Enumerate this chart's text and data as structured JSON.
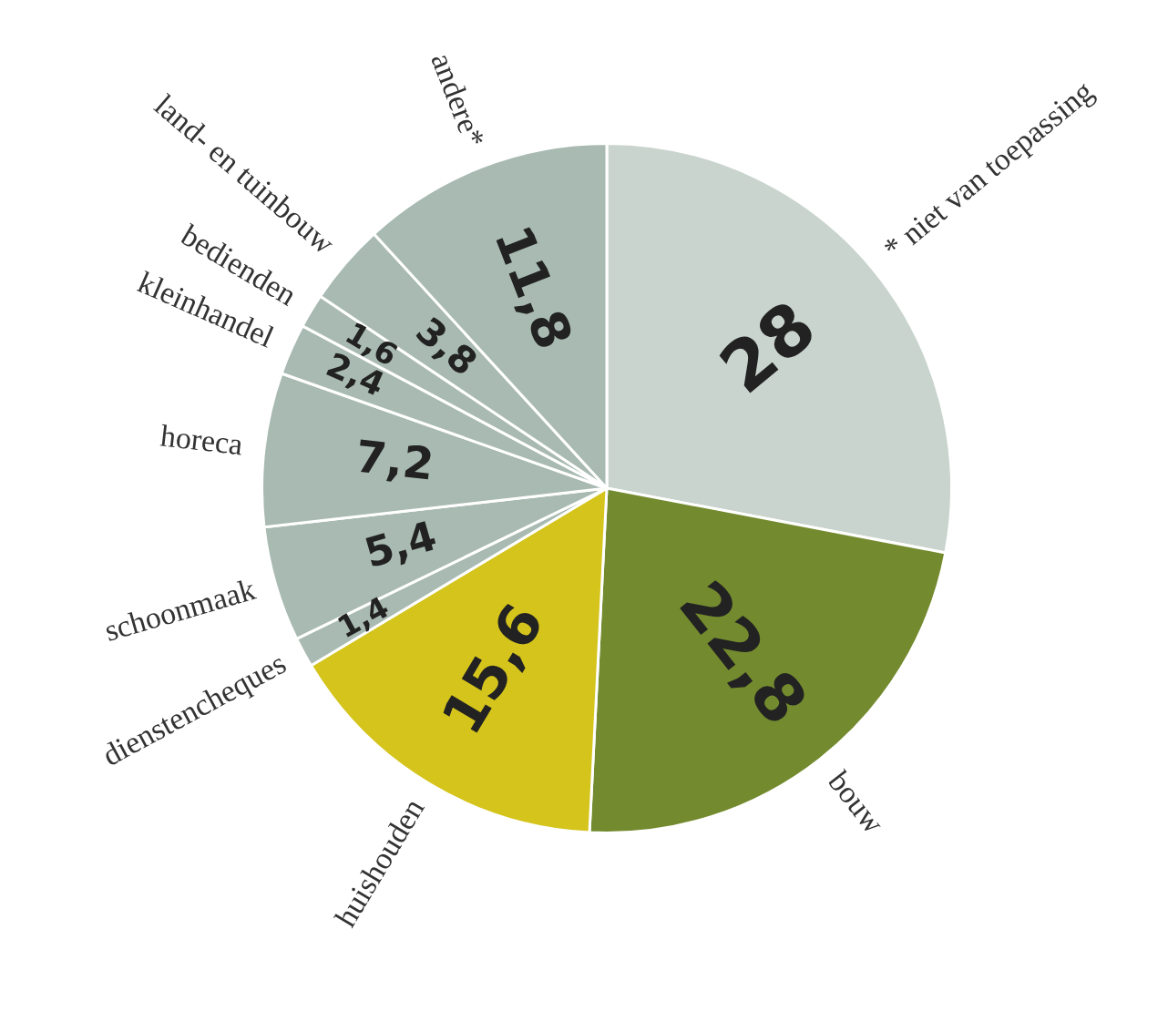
{
  "chart_data": {
    "type": "pie",
    "categories": [
      "* niet van toepassing",
      "bouw",
      "huishouden",
      "dienstencheques",
      "schoonmaak",
      "horeca",
      "kleinhandel",
      "bedienden",
      "land- en tuinbouw",
      "andere*"
    ],
    "values": [
      28,
      22.8,
      15.6,
      1.4,
      5.4,
      7.2,
      2.4,
      1.6,
      3.8,
      11.8
    ],
    "colors": [
      "#c9d4ce",
      "#738a2e",
      "#d4c41c",
      "#a8bab2",
      "#a8bab2",
      "#a8bab2",
      "#a8bab2",
      "#a8bab2",
      "#a8bab2",
      "#a8bab2"
    ],
    "value_labels": [
      "28",
      "22,8",
      "15,6",
      "1,4",
      "5,4",
      "7,2",
      "2,4",
      "1,6",
      "3,8",
      "11,8"
    ],
    "legend": false
  }
}
